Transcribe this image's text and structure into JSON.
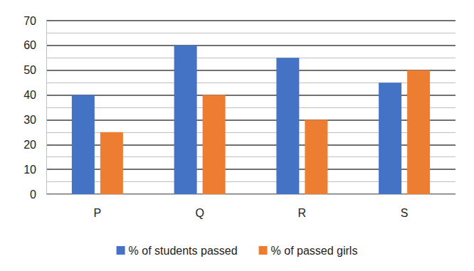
{
  "chart_data": {
    "type": "bar",
    "categories": [
      "P",
      "Q",
      "R",
      "S"
    ],
    "series": [
      {
        "name": "% of students passed",
        "color": "#4472c4",
        "values": [
          40,
          60,
          55,
          45
        ]
      },
      {
        "name": "% of passed girls",
        "color": "#ed7d31",
        "values": [
          25,
          40,
          30,
          50
        ]
      }
    ],
    "ylim": [
      0,
      70
    ],
    "yticks": [
      0,
      10,
      20,
      30,
      40,
      50,
      60,
      70
    ],
    "grid": true,
    "legend": "bottom"
  }
}
